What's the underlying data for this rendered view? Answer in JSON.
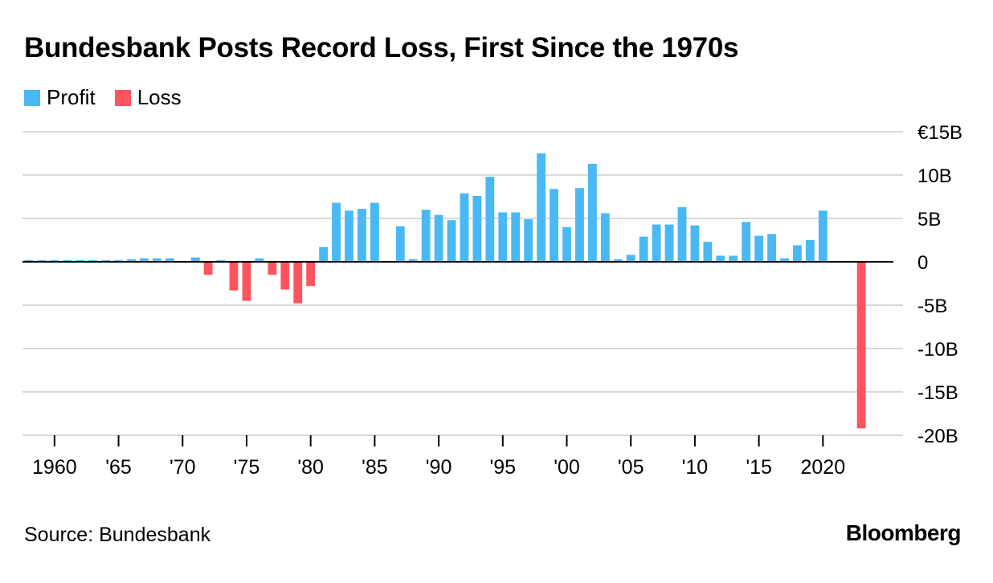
{
  "title": "Bundesbank Posts Record Loss, First Since the 1970s",
  "legend": [
    {
      "label": "Profit",
      "color": "#4ab8f5"
    },
    {
      "label": "Loss",
      "color": "#fe5460"
    }
  ],
  "source": "Source: Bundesbank",
  "brand": "Bloomberg",
  "chart_data": {
    "type": "bar",
    "x_ticks": [
      {
        "year": 1960,
        "label": "1960"
      },
      {
        "year": 1965,
        "label": "'65"
      },
      {
        "year": 1970,
        "label": "'70"
      },
      {
        "year": 1975,
        "label": "'75"
      },
      {
        "year": 1980,
        "label": "'80"
      },
      {
        "year": 1985,
        "label": "'85"
      },
      {
        "year": 1990,
        "label": "'90"
      },
      {
        "year": 1995,
        "label": "'95"
      },
      {
        "year": 2000,
        "label": "'00"
      },
      {
        "year": 2005,
        "label": "'05"
      },
      {
        "year": 2010,
        "label": "'10"
      },
      {
        "year": 2015,
        "label": "'15"
      },
      {
        "year": 2020,
        "label": "2020"
      }
    ],
    "y_ticks": [
      {
        "value": 15,
        "label": "€15B"
      },
      {
        "value": 10,
        "label": "10B"
      },
      {
        "value": 5,
        "label": "5B"
      },
      {
        "value": 0,
        "label": "0"
      },
      {
        "value": -5,
        "label": "-5B"
      },
      {
        "value": -10,
        "label": "-10B"
      },
      {
        "value": -15,
        "label": "-15B"
      },
      {
        "value": -20,
        "label": "-20B"
      }
    ],
    "ylim": [
      -20,
      15
    ],
    "xlim": [
      1957.5,
      2025.5
    ],
    "unit": "€ billions",
    "years": [
      1958,
      1959,
      1960,
      1961,
      1962,
      1963,
      1964,
      1965,
      1966,
      1967,
      1968,
      1969,
      1970,
      1971,
      1972,
      1973,
      1974,
      1975,
      1976,
      1977,
      1978,
      1979,
      1980,
      1981,
      1982,
      1983,
      1984,
      1985,
      1986,
      1987,
      1988,
      1989,
      1990,
      1991,
      1992,
      1993,
      1994,
      1995,
      1996,
      1997,
      1998,
      1999,
      2000,
      2001,
      2002,
      2003,
      2004,
      2005,
      2006,
      2007,
      2008,
      2009,
      2010,
      2011,
      2012,
      2013,
      2014,
      2015,
      2016,
      2017,
      2018,
      2019,
      2020,
      2021,
      2022,
      2023
    ],
    "values": [
      0.2,
      0.2,
      0.2,
      0.2,
      0.2,
      0.2,
      0.2,
      0.2,
      0.3,
      0.4,
      0.4,
      0.4,
      0.1,
      0.5,
      -1.5,
      0.2,
      -3.3,
      -4.5,
      0.4,
      -1.5,
      -3.2,
      -4.8,
      -2.8,
      1.7,
      6.8,
      5.9,
      6.1,
      6.8,
      0.1,
      4.1,
      0.3,
      6.0,
      5.4,
      4.8,
      7.9,
      7.6,
      9.8,
      5.7,
      5.7,
      4.9,
      12.5,
      8.4,
      4.0,
      8.5,
      11.3,
      5.6,
      0.3,
      0.8,
      2.9,
      4.3,
      4.3,
      6.3,
      4.2,
      2.3,
      0.7,
      0.7,
      4.6,
      3.0,
      3.2,
      0.4,
      1.9,
      2.5,
      5.9,
      0.1,
      0.1,
      -19.2
    ],
    "colors": {
      "positive": "#4ab8f5",
      "negative": "#fe5460"
    },
    "legend_position": "top-left",
    "grid": true
  }
}
